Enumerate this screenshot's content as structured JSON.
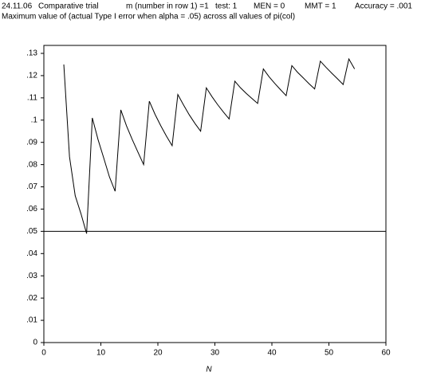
{
  "chart_data": {
    "type": "line",
    "header": [
      "24.11.06",
      "Comparative trial",
      "m (number in row 1) =1",
      "test: 1",
      "MEN = 0",
      "MMT = 1",
      "Accuracy = .001"
    ],
    "title": "Maximum value of (actual Type I error when alpha = .05) across all values of pi(col)",
    "xlabel": "N",
    "x": [
      3.5,
      4.5,
      5.5,
      6.5,
      7.5,
      8.5,
      9.5,
      10.5,
      11.5,
      12.5,
      13.5,
      14.5,
      15.5,
      16.5,
      17.5,
      18.5,
      19.5,
      20.5,
      21.5,
      22.5,
      23.5,
      24.5,
      25.5,
      26.5,
      27.5,
      28.5,
      29.5,
      30.5,
      31.5,
      32.5,
      33.5,
      34.5,
      35.5,
      36.5,
      37.5,
      38.5,
      39.5,
      40.5,
      41.5,
      42.5,
      43.5,
      44.5,
      45.5,
      46.5,
      47.5,
      48.5,
      49.5,
      50.5,
      51.5,
      52.5,
      53.5,
      54.5
    ],
    "series": [
      {
        "color": "#000000",
        "values": [
          0.125,
          0.0835,
          0.066,
          0.058,
          0.049,
          0.101,
          0.0913,
          0.083,
          0.0745,
          0.068,
          0.1046,
          0.0974,
          0.0913,
          0.0856,
          0.08,
          0.1085,
          0.1026,
          0.0975,
          0.0928,
          0.0885,
          0.1115,
          0.1068,
          0.1024,
          0.0985,
          0.095,
          0.1145,
          0.1105,
          0.1069,
          0.1036,
          0.1005,
          0.1175,
          0.1145,
          0.112,
          0.1097,
          0.1075,
          0.123,
          0.1195,
          0.1165,
          0.1137,
          0.111,
          0.1245,
          0.1215,
          0.119,
          0.1164,
          0.114,
          0.1265,
          0.1237,
          0.1211,
          0.1186,
          0.116,
          0.1275,
          0.123
        ]
      }
    ],
    "hline": 0.05,
    "xlim": [
      0,
      60
    ],
    "xticks": [
      0,
      10,
      20,
      30,
      40,
      50,
      60
    ],
    "ylim": [
      0,
      0.13
    ],
    "yticks": [
      0,
      {
        "value": 0.01,
        "label": ".01"
      },
      {
        "value": 0.02,
        "label": ".02"
      },
      {
        "value": 0.03,
        "label": ".03"
      },
      {
        "value": 0.04,
        "label": ".04"
      },
      {
        "value": 0.05,
        "label": ".05"
      },
      {
        "value": 0.06,
        "label": ".06"
      },
      {
        "value": 0.07,
        "label": ".07"
      },
      {
        "value": 0.08,
        "label": ".08"
      },
      {
        "value": 0.09,
        "label": ".09"
      },
      {
        "value": 0.1,
        "label": ".1"
      },
      {
        "value": 0.11,
        "label": ".11"
      },
      {
        "value": 0.12,
        "label": ".12"
      },
      {
        "value": 0.13,
        "label": ".13"
      }
    ]
  }
}
